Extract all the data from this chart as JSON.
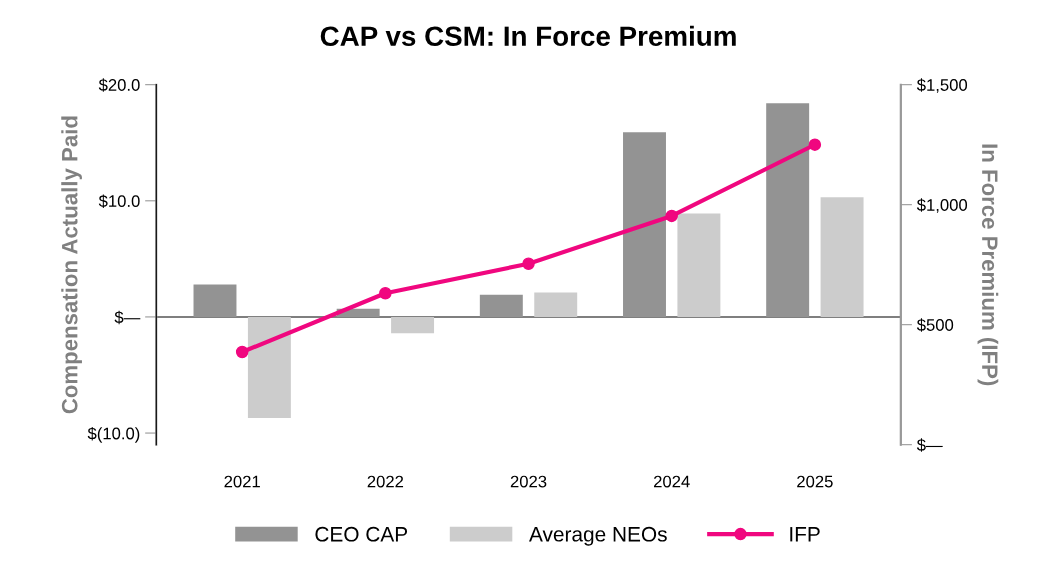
{
  "chart_data": {
    "type": "bar",
    "title": "CAP vs CSM: In Force Premium",
    "ylabel": "Compensation Actually Paid",
    "y2label": "In Force Premium (IFP)",
    "categories": [
      "2021",
      "2022",
      "2023",
      "2024",
      "2025"
    ],
    "series": [
      {
        "name": "CEO CAP",
        "color": "#939393",
        "values": [
          2.8,
          0.7,
          1.9,
          15.9,
          18.4
        ]
      },
      {
        "name": "Average NEOs",
        "color": "#cccccc",
        "values": [
          -8.7,
          -1.4,
          2.1,
          8.9,
          10.3
        ]
      },
      {
        "name": "IFP",
        "type": "line",
        "axis": "y2",
        "color": "#f0077f",
        "marker": "circle",
        "values": [
          386,
          631,
          754,
          953,
          1250
        ]
      }
    ],
    "ylim": [
      -11,
      20
    ],
    "yticks": [
      {
        "value": 20,
        "label": "$20.0"
      },
      {
        "value": 10,
        "label": "$10.0"
      },
      {
        "value": 0,
        "label": "$—"
      },
      {
        "value": -10,
        "label": "$(10.0)"
      }
    ],
    "y2lim": [
      0,
      1500
    ],
    "y2ticks": [
      {
        "value": 1500,
        "label": "$1,500"
      },
      {
        "value": 1000,
        "label": "$1,000"
      },
      {
        "value": 500,
        "label": "$500"
      },
      {
        "value": 0,
        "label": "$—"
      }
    ],
    "ref_lines": [
      {
        "axis": "y",
        "value": 0,
        "color": "#7f7f7f"
      }
    ],
    "grid": false,
    "legend": "bottom"
  }
}
